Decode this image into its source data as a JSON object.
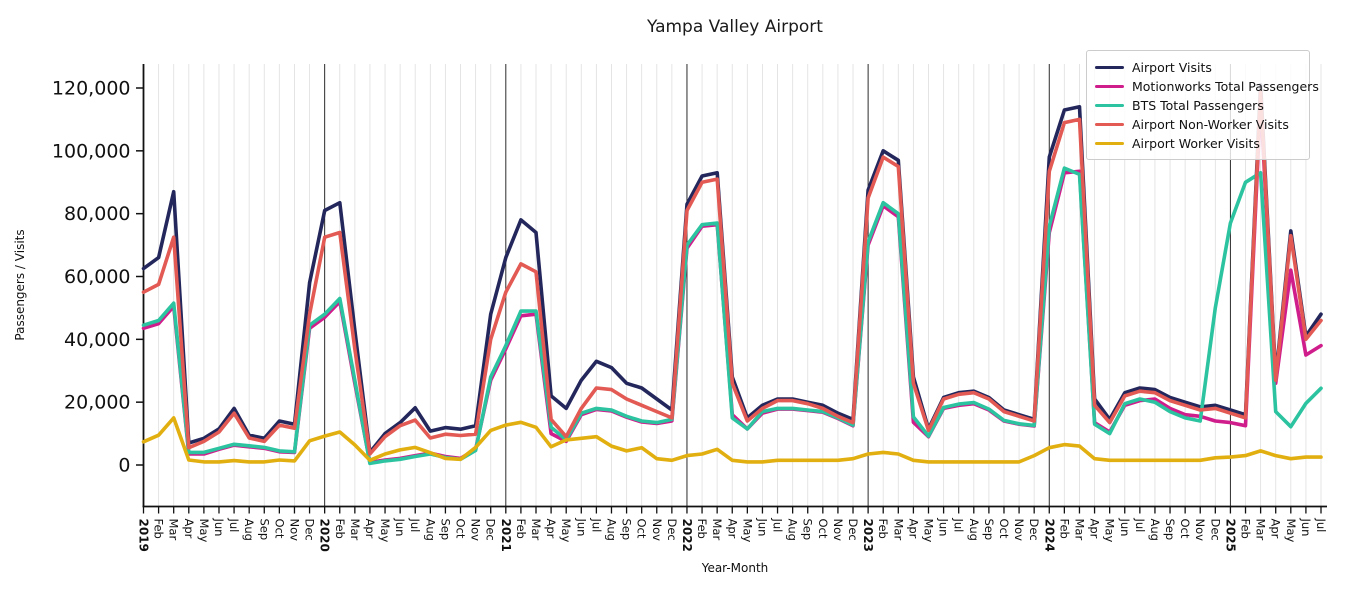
{
  "title": "Yampa Valley Airport",
  "chart_data": {
    "type": "line",
    "title": "Yampa Valley Airport",
    "xlabel": "Year-Month",
    "ylabel": "Passengers / Visits",
    "legend_position": "upper right",
    "grid": "vertical gridline per month, darker line at each January",
    "ylim": [
      0,
      127000
    ],
    "yticks": [
      0,
      20000,
      40000,
      60000,
      80000,
      100000,
      120000
    ],
    "y_tick_labels": [
      "0",
      "20,000",
      "40,000",
      "60,000",
      "80,000",
      "100,000",
      "120,000"
    ],
    "x_labels": [
      "2019",
      "Feb",
      "Mar",
      "Apr",
      "May",
      "Jun",
      "Jul",
      "Aug",
      "Sep",
      "Oct",
      "Nov",
      "Dec",
      "2020",
      "Feb",
      "Mar",
      "Apr",
      "May",
      "Jun",
      "Jul",
      "Aug",
      "Sep",
      "Oct",
      "Nov",
      "Dec",
      "2021",
      "Feb",
      "Mar",
      "Apr",
      "May",
      "Jun",
      "Jul",
      "Aug",
      "Sep",
      "Oct",
      "Nov",
      "Dec",
      "2022",
      "Feb",
      "Mar",
      "Apr",
      "May",
      "Jun",
      "Jul",
      "Aug",
      "Sep",
      "Oct",
      "Nov",
      "Dec",
      "2023",
      "Feb",
      "Mar",
      "Apr",
      "May",
      "Jun",
      "Jul",
      "Aug",
      "Sep",
      "Oct",
      "Nov",
      "Dec",
      "2024",
      "Feb",
      "Mar",
      "Apr",
      "May",
      "Jun",
      "Jul",
      "Aug",
      "Sep",
      "Oct",
      "Nov",
      "Dec",
      "2025",
      "Feb",
      "Mar",
      "Apr",
      "May",
      "Jun",
      "Jul"
    ],
    "series": [
      {
        "name": "Airport Visits",
        "color": "#23275c",
        "values": [
          62500,
          66000,
          87000,
          7000,
          8500,
          11500,
          18000,
          9500,
          8500,
          14000,
          13000,
          58000,
          81000,
          83500,
          43000,
          4000,
          10000,
          13500,
          18200,
          10800,
          11900,
          11400,
          12500,
          48000,
          66000,
          78000,
          74000,
          22000,
          18000,
          27000,
          33000,
          31000,
          26000,
          24500,
          21000,
          17500,
          83000,
          92000,
          93000,
          28000,
          15000,
          19000,
          21000,
          21000,
          20000,
          19000,
          16500,
          14500,
          87500,
          100000,
          97000,
          28000,
          11500,
          21500,
          23000,
          23500,
          21500,
          17500,
          16000,
          14500,
          98000,
          113000,
          114000,
          21000,
          14500,
          23000,
          24500,
          24000,
          21500,
          20000,
          18500,
          19000,
          17500,
          16000,
          121000,
          28000,
          74500,
          41000,
          48000
        ]
      },
      {
        "name": "Motionworks Total Passengers",
        "color": "#d01d8c",
        "values": [
          43500,
          45000,
          50500,
          3500,
          3500,
          5000,
          6300,
          5800,
          5300,
          4200,
          4000,
          43500,
          47000,
          52000,
          26000,
          800,
          1600,
          2100,
          3000,
          3800,
          2700,
          2100,
          5000,
          27000,
          37000,
          47500,
          48000,
          10000,
          7500,
          16000,
          17700,
          17200,
          15200,
          13700,
          13200,
          14000,
          69000,
          76000,
          76500,
          16000,
          11500,
          16500,
          17800,
          17800,
          17300,
          16800,
          14800,
          12500,
          70000,
          82500,
          79000,
          13600,
          9000,
          18000,
          19000,
          19500,
          17500,
          14000,
          13000,
          12400,
          74000,
          93000,
          93500,
          13500,
          10500,
          19000,
          20500,
          21000,
          18000,
          16000,
          15500,
          14000,
          13500,
          12500,
          116000,
          26000,
          62000,
          35000,
          38000
        ]
      },
      {
        "name": "BTS Total Passengers",
        "color": "#2cc3a0",
        "values": [
          44500,
          46000,
          51500,
          4000,
          4000,
          5300,
          6600,
          6100,
          5600,
          4500,
          4200,
          44500,
          48000,
          53000,
          27000,
          500,
          1300,
          1800,
          2700,
          3500,
          2400,
          1800,
          4600,
          28000,
          38000,
          49000,
          49000,
          12000,
          8000,
          16500,
          18000,
          17500,
          15500,
          14000,
          13500,
          14500,
          70000,
          76500,
          77000,
          15000,
          11500,
          17000,
          18000,
          18000,
          17500,
          17000,
          15000,
          12700,
          71000,
          83500,
          80000,
          15300,
          9200,
          18300,
          19400,
          19900,
          17800,
          14200,
          13100,
          12600,
          76000,
          94500,
          92500,
          13000,
          10000,
          19500,
          21000,
          20000,
          17000,
          15000,
          14000,
          50000,
          77000,
          90000,
          93000,
          17000,
          12200,
          19600,
          24400
        ]
      },
      {
        "name": "Airport Non-Worker Visits",
        "color": "#e25a53",
        "values": [
          55000,
          57500,
          72500,
          5500,
          7500,
          10500,
          16500,
          8600,
          7500,
          12700,
          11700,
          48000,
          72500,
          74000,
          37000,
          3500,
          9000,
          12500,
          14300,
          8600,
          9800,
          9400,
          9800,
          40000,
          55000,
          64000,
          61500,
          14500,
          9000,
          18000,
          24500,
          24000,
          21000,
          19000,
          17000,
          15000,
          81000,
          90000,
          91000,
          26000,
          14000,
          18000,
          20500,
          20500,
          19500,
          18000,
          15500,
          13500,
          85000,
          98000,
          95000,
          26000,
          11000,
          21000,
          22500,
          23000,
          21000,
          17000,
          15500,
          14000,
          93500,
          109000,
          110000,
          19000,
          13500,
          22000,
          23500,
          23000,
          20500,
          19000,
          17500,
          18000,
          16500,
          15000,
          119000,
          27000,
          73000,
          40000,
          46000
        ]
      },
      {
        "name": "Airport Worker Visits",
        "color": "#e2af10",
        "values": [
          7400,
          9500,
          15000,
          1600,
          1000,
          1000,
          1400,
          1000,
          1000,
          1600,
          1300,
          7700,
          9200,
          10500,
          6400,
          1500,
          3500,
          4800,
          5600,
          3900,
          2100,
          1800,
          5600,
          11000,
          12700,
          13600,
          12000,
          5800,
          8000,
          8500,
          9000,
          6000,
          4500,
          5500,
          2000,
          1500,
          3000,
          3500,
          5000,
          1500,
          1000,
          1000,
          1500,
          1500,
          1500,
          1500,
          1500,
          2000,
          3500,
          4000,
          3500,
          1500,
          1000,
          1000,
          1000,
          1000,
          1000,
          1000,
          1000,
          3000,
          5500,
          6500,
          6000,
          2000,
          1500,
          1500,
          1500,
          1500,
          1500,
          1500,
          1500,
          2300,
          2500,
          3000,
          4500,
          3000,
          2000,
          2500,
          2500
        ]
      }
    ]
  }
}
